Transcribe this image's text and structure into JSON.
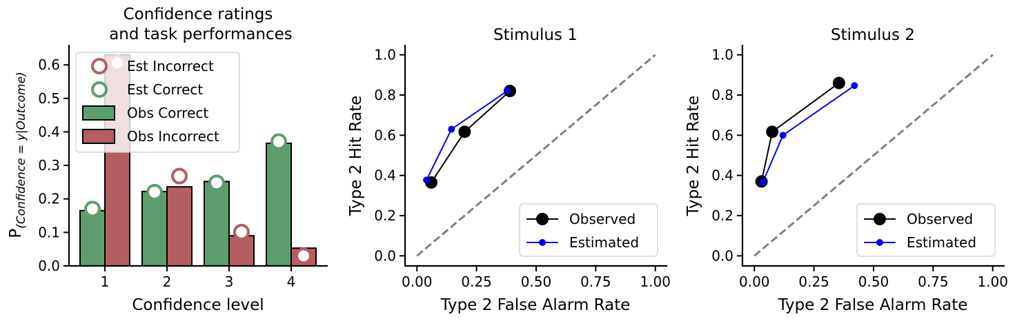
{
  "chart_data": [
    {
      "type": "bar",
      "title_lines": [
        "Confidence ratings",
        "and task performances"
      ],
      "xlabel": "Confidence level",
      "ylabel_main": "P",
      "ylabel_sub": "(Confidence = y|Outcome)",
      "categories": [
        "1",
        "2",
        "3",
        "4"
      ],
      "ylim": [
        0,
        0.66
      ],
      "yticks": [
        "0.0",
        "0.1",
        "0.2",
        "0.3",
        "0.4",
        "0.5",
        "0.6"
      ],
      "series": [
        {
          "name": "Obs Correct",
          "kind": "bar",
          "color": "#5e9e6e",
          "values": [
            0.165,
            0.222,
            0.252,
            0.366
          ]
        },
        {
          "name": "Obs Incorrect",
          "kind": "bar",
          "color": "#b55e62",
          "values": [
            0.63,
            0.236,
            0.09,
            0.053
          ]
        },
        {
          "name": "Est Correct",
          "kind": "marker",
          "color": "#5e9e6e",
          "values": [
            0.17,
            0.22,
            0.248,
            0.371
          ]
        },
        {
          "name": "Est Incorrect",
          "kind": "marker",
          "color": "#b55e62",
          "values": [
            0.606,
            0.268,
            0.101,
            0.03
          ]
        }
      ],
      "legend": [
        "Est Incorrect",
        "Est Correct",
        "Obs Correct",
        "Obs Incorrect"
      ],
      "legend_position": "upper-left"
    },
    {
      "type": "line",
      "title": "Stimulus 1",
      "xlabel": "Type 2 False Alarm Rate",
      "ylabel": "Type 2 Hit Rate",
      "xlim": [
        -0.05,
        1.05
      ],
      "ylim": [
        -0.05,
        1.05
      ],
      "xticks": [
        "0.00",
        "0.25",
        "0.50",
        "0.75",
        "1.00"
      ],
      "yticks": [
        "0.0",
        "0.2",
        "0.4",
        "0.6",
        "0.8",
        "1.0"
      ],
      "series": [
        {
          "name": "Observed",
          "color": "#000000",
          "x": [
            0.06,
            0.2,
            0.39
          ],
          "y": [
            0.365,
            0.617,
            0.82
          ]
        },
        {
          "name": "Estimated",
          "color": "#0000ee",
          "x": [
            0.04,
            0.145,
            0.38
          ],
          "y": [
            0.377,
            0.63,
            0.821
          ]
        }
      ],
      "legend_position": "lower-right"
    },
    {
      "type": "line",
      "title": "Stimulus 2",
      "xlabel": "Type 2 False Alarm Rate",
      "ylabel": "Type 2 Hit Rate",
      "xlim": [
        -0.05,
        1.05
      ],
      "ylim": [
        -0.05,
        1.05
      ],
      "xticks": [
        "0.00",
        "0.25",
        "0.50",
        "0.75",
        "1.00"
      ],
      "yticks": [
        "0.0",
        "0.2",
        "0.4",
        "0.6",
        "0.8",
        "1.0"
      ],
      "series": [
        {
          "name": "Observed",
          "color": "#000000",
          "x": [
            0.03,
            0.075,
            0.355
          ],
          "y": [
            0.37,
            0.617,
            0.86
          ]
        },
        {
          "name": "Estimated",
          "color": "#0000ee",
          "x": [
            0.035,
            0.12,
            0.42
          ],
          "y": [
            0.365,
            0.6,
            0.847
          ]
        }
      ],
      "legend_position": "lower-right"
    }
  ]
}
